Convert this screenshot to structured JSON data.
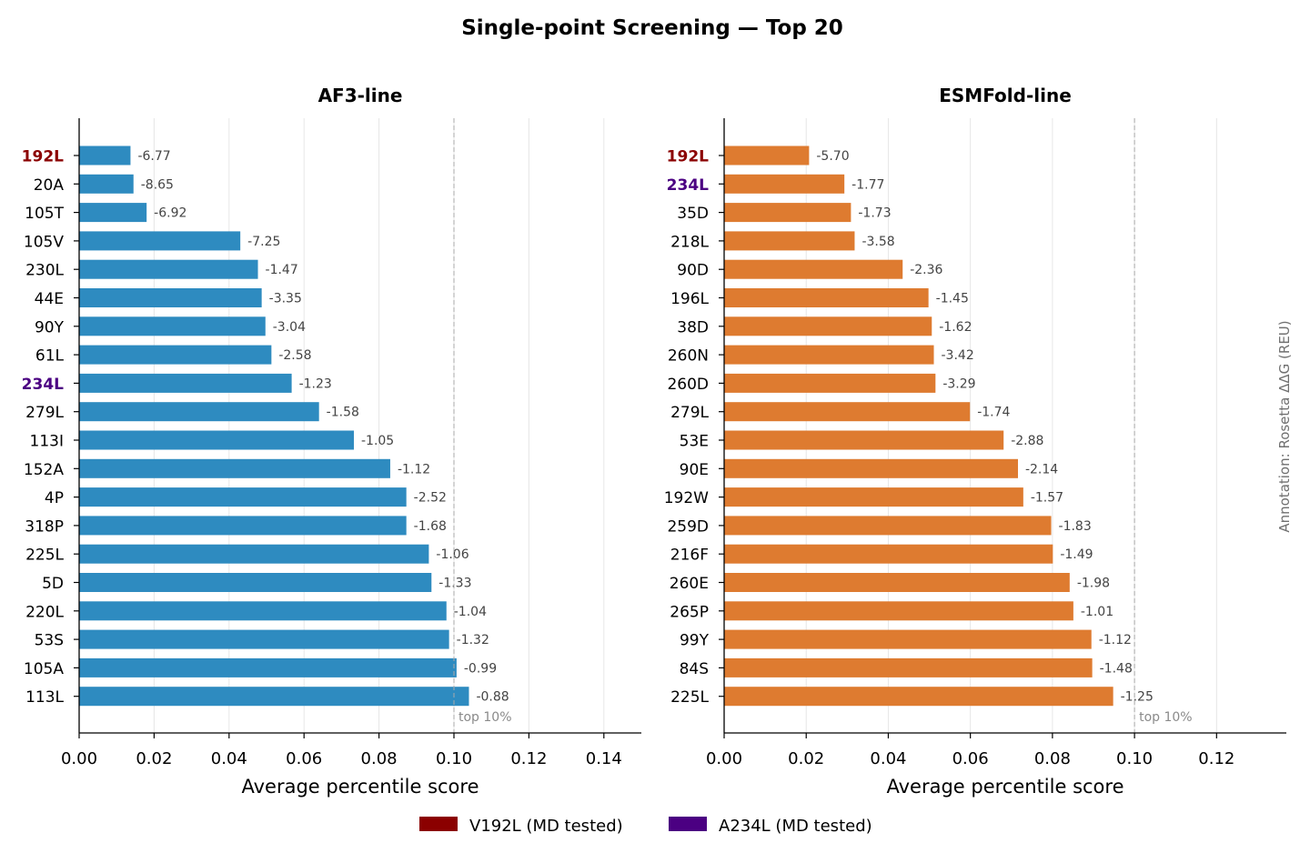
{
  "title": "Single-point Screening — Top 20",
  "side_annotation": "Annotation: Rosetta ΔΔG (REU)",
  "colors": {
    "af3_bar": "#2e8bc0",
    "esm_bar": "#de7b30",
    "v192l": "#8b0000",
    "a234l": "#4b0082",
    "threshold": "#aaaaaa",
    "grid": "#e6e6e6"
  },
  "legend": [
    {
      "label": "V192L (MD tested)",
      "color": "#8b0000"
    },
    {
      "label": "A234L (MD tested)",
      "color": "#4b0082"
    }
  ],
  "chart_data": [
    {
      "type": "bar",
      "orientation": "horizontal",
      "title": "AF3-line",
      "xlabel": "Average percentile score",
      "ylabel": "",
      "xlim": [
        0,
        0.15
      ],
      "xticks": [
        "0.00",
        "0.02",
        "0.04",
        "0.06",
        "0.08",
        "0.10",
        "0.12",
        "0.14"
      ],
      "threshold": {
        "value": 0.1,
        "label": "top 10%"
      },
      "categories": [
        "192L",
        "20A",
        "105T",
        "105V",
        "230L",
        "44E",
        "90Y",
        "61L",
        "234L",
        "279L",
        "113I",
        "152A",
        "4P",
        "318P",
        "225L",
        "5D",
        "220L",
        "53S",
        "105A",
        "113L"
      ],
      "values": [
        0.0137,
        0.0145,
        0.018,
        0.043,
        0.0477,
        0.0487,
        0.0497,
        0.0513,
        0.0567,
        0.064,
        0.0733,
        0.083,
        0.0873,
        0.0873,
        0.0933,
        0.094,
        0.098,
        0.0987,
        0.1007,
        0.104
      ],
      "annotations": [
        "-6.77",
        "-8.65",
        "-6.92",
        "-7.25",
        "-1.47",
        "-3.35",
        "-3.04",
        "-2.58",
        "-1.23",
        "-1.58",
        "-1.05",
        "-1.12",
        "-2.52",
        "-1.68",
        "-1.06",
        "-1.33",
        "-1.04",
        "-1.32",
        "-0.99",
        "-0.88"
      ],
      "highlight": {
        "192L": "v192l",
        "234L": "a234l"
      }
    },
    {
      "type": "bar",
      "orientation": "horizontal",
      "title": "ESMFold-line",
      "xlabel": "Average percentile score",
      "ylabel": "",
      "xlim": [
        0,
        0.137
      ],
      "xticks": [
        "0.00",
        "0.02",
        "0.04",
        "0.06",
        "0.08",
        "0.10",
        "0.12"
      ],
      "threshold": {
        "value": 0.1,
        "label": "top 10%"
      },
      "categories": [
        "192L",
        "234L",
        "35D",
        "218L",
        "90D",
        "196L",
        "38D",
        "260N",
        "260D",
        "279L",
        "53E",
        "90E",
        "192W",
        "259D",
        "216F",
        "260E",
        "265P",
        "99Y",
        "84S",
        "225L"
      ],
      "values": [
        0.0207,
        0.0293,
        0.0309,
        0.0318,
        0.0435,
        0.0498,
        0.0506,
        0.0511,
        0.0515,
        0.0599,
        0.0681,
        0.0716,
        0.0729,
        0.0797,
        0.0801,
        0.0842,
        0.0851,
        0.0895,
        0.0897,
        0.0948
      ],
      "annotations": [
        "-5.70",
        "-1.77",
        "-1.73",
        "-3.58",
        "-2.36",
        "-1.45",
        "-1.62",
        "-3.42",
        "-3.29",
        "-1.74",
        "-2.88",
        "-2.14",
        "-1.57",
        "-1.83",
        "-1.49",
        "-1.98",
        "-1.01",
        "-1.12",
        "-1.48",
        "-1.25"
      ],
      "highlight": {
        "192L": "v192l",
        "234L": "a234l"
      }
    }
  ]
}
